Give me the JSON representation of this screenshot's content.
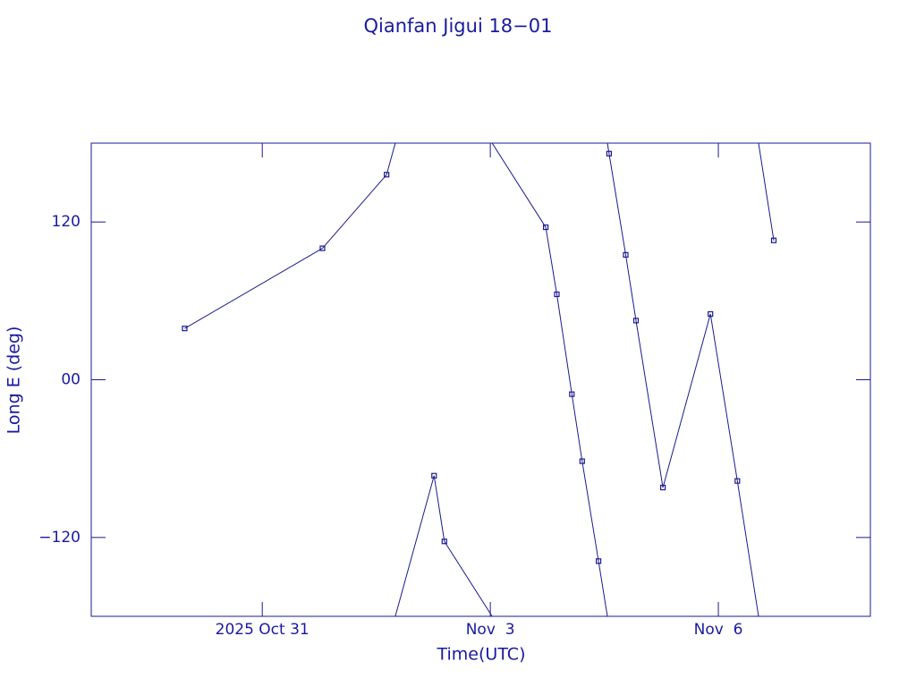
{
  "chart_data": {
    "type": "line",
    "title": "Qianfan Jigui 18−01",
    "xlabel": "Time(UTC)",
    "ylabel": "Long E (deg)",
    "x": [
      "2025-10-29T23:30",
      "2025-10-31T19:00",
      "2025-11-01T15:15",
      "2025-11-02T06:15",
      "2025-11-02T09:30",
      "2025-11-03T17:30",
      "2025-11-03T21:00",
      "2025-11-04T01:45",
      "2025-11-04T05:00",
      "2025-11-04T10:10",
      "2025-11-04T13:30",
      "2025-11-04T18:45",
      "2025-11-04T22:00",
      "2025-11-05T06:30",
      "2025-11-05T21:30",
      "2025-11-06T06:00",
      "2025-11-06T17:30"
    ],
    "series": [
      {
        "color": "#1a1a90",
        "values": [
          39,
          100,
          156,
          -73,
          -123,
          116,
          65,
          -11,
          -62,
          -138,
          172,
          95,
          45,
          -82,
          50,
          -77,
          106
        ]
      }
    ],
    "xlim": [
      "2025-10-28T18:00",
      "2025-11-08T00:00"
    ],
    "xticks": [
      {
        "value": "2025-10-31T00:00",
        "label": "2025 Oct 31"
      },
      {
        "value": "2025-11-03T00:00",
        "label": "Nov  3"
      },
      {
        "value": "2025-11-06T00:00",
        "label": "Nov  6"
      }
    ],
    "ylim": [
      -180,
      180
    ],
    "yticks": [
      {
        "value": -120,
        "label": "−120"
      },
      {
        "value": 0,
        "label": "00"
      },
      120
    ],
    "wrap": true
  }
}
